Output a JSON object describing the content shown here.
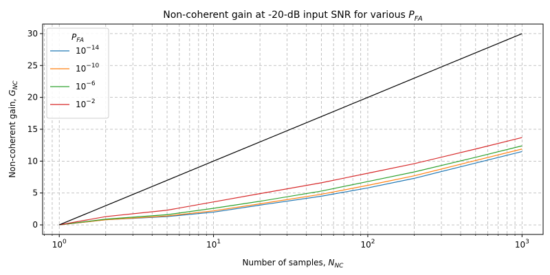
{
  "chart_data": {
    "type": "line",
    "title": {
      "text": "Non-coherent gain at -20-dB input SNR for various ",
      "var_base": "P",
      "var_sub": "FA"
    },
    "xlabel": {
      "text": "Number of samples, ",
      "var_base": "N",
      "var_sub": "NC"
    },
    "ylabel": {
      "text": "Non-coherent gain, ",
      "var_base": "G",
      "var_sub": "NC"
    },
    "x_scale": "log",
    "xlim": [
      0.78,
      1370
    ],
    "ylim": [
      -1.5,
      31.5
    ],
    "x_ticks": [
      {
        "base": "10",
        "exp": "0",
        "value": 1
      },
      {
        "base": "10",
        "exp": "1",
        "value": 10
      },
      {
        "base": "10",
        "exp": "2",
        "value": 100
      },
      {
        "base": "10",
        "exp": "3",
        "value": 1000
      }
    ],
    "y_ticks": [
      0,
      5,
      10,
      15,
      20,
      25,
      30
    ],
    "grid": true,
    "grid_minor": true,
    "legend": {
      "title_base": "P",
      "title_sub": "FA",
      "location": "upper-left",
      "entries": [
        {
          "base": "10",
          "exp": "−14"
        },
        {
          "base": "10",
          "exp": "−10"
        },
        {
          "base": "10",
          "exp": "−6"
        },
        {
          "base": "10",
          "exp": "−2"
        }
      ]
    },
    "x": [
      1,
      2,
      5,
      10,
      20,
      50,
      100,
      200,
      500,
      1000
    ],
    "series": [
      {
        "name": "10^-14",
        "color": "#1f77b4",
        "values": [
          0,
          0.8,
          1.3,
          2.0,
          3.1,
          4.5,
          5.8,
          7.3,
          9.7,
          11.5
        ]
      },
      {
        "name": "10^-10",
        "color": "#ff7f0e",
        "values": [
          0,
          0.8,
          1.4,
          2.2,
          3.3,
          4.8,
          6.2,
          7.7,
          10.1,
          11.9
        ]
      },
      {
        "name": "10^-6",
        "color": "#2ca02c",
        "values": [
          0,
          0.9,
          1.6,
          2.6,
          3.7,
          5.3,
          6.8,
          8.3,
          10.6,
          12.4
        ]
      },
      {
        "name": "10^-2",
        "color": "#d62728",
        "values": [
          0,
          1.3,
          2.3,
          3.6,
          4.9,
          6.6,
          8.1,
          9.6,
          11.9,
          13.7
        ]
      },
      {
        "name": "",
        "color": "#000000",
        "values": [
          0,
          3.0103,
          6.9897,
          10,
          13.0103,
          16.9897,
          20,
          23.0103,
          26.9897,
          30
        ]
      }
    ]
  }
}
